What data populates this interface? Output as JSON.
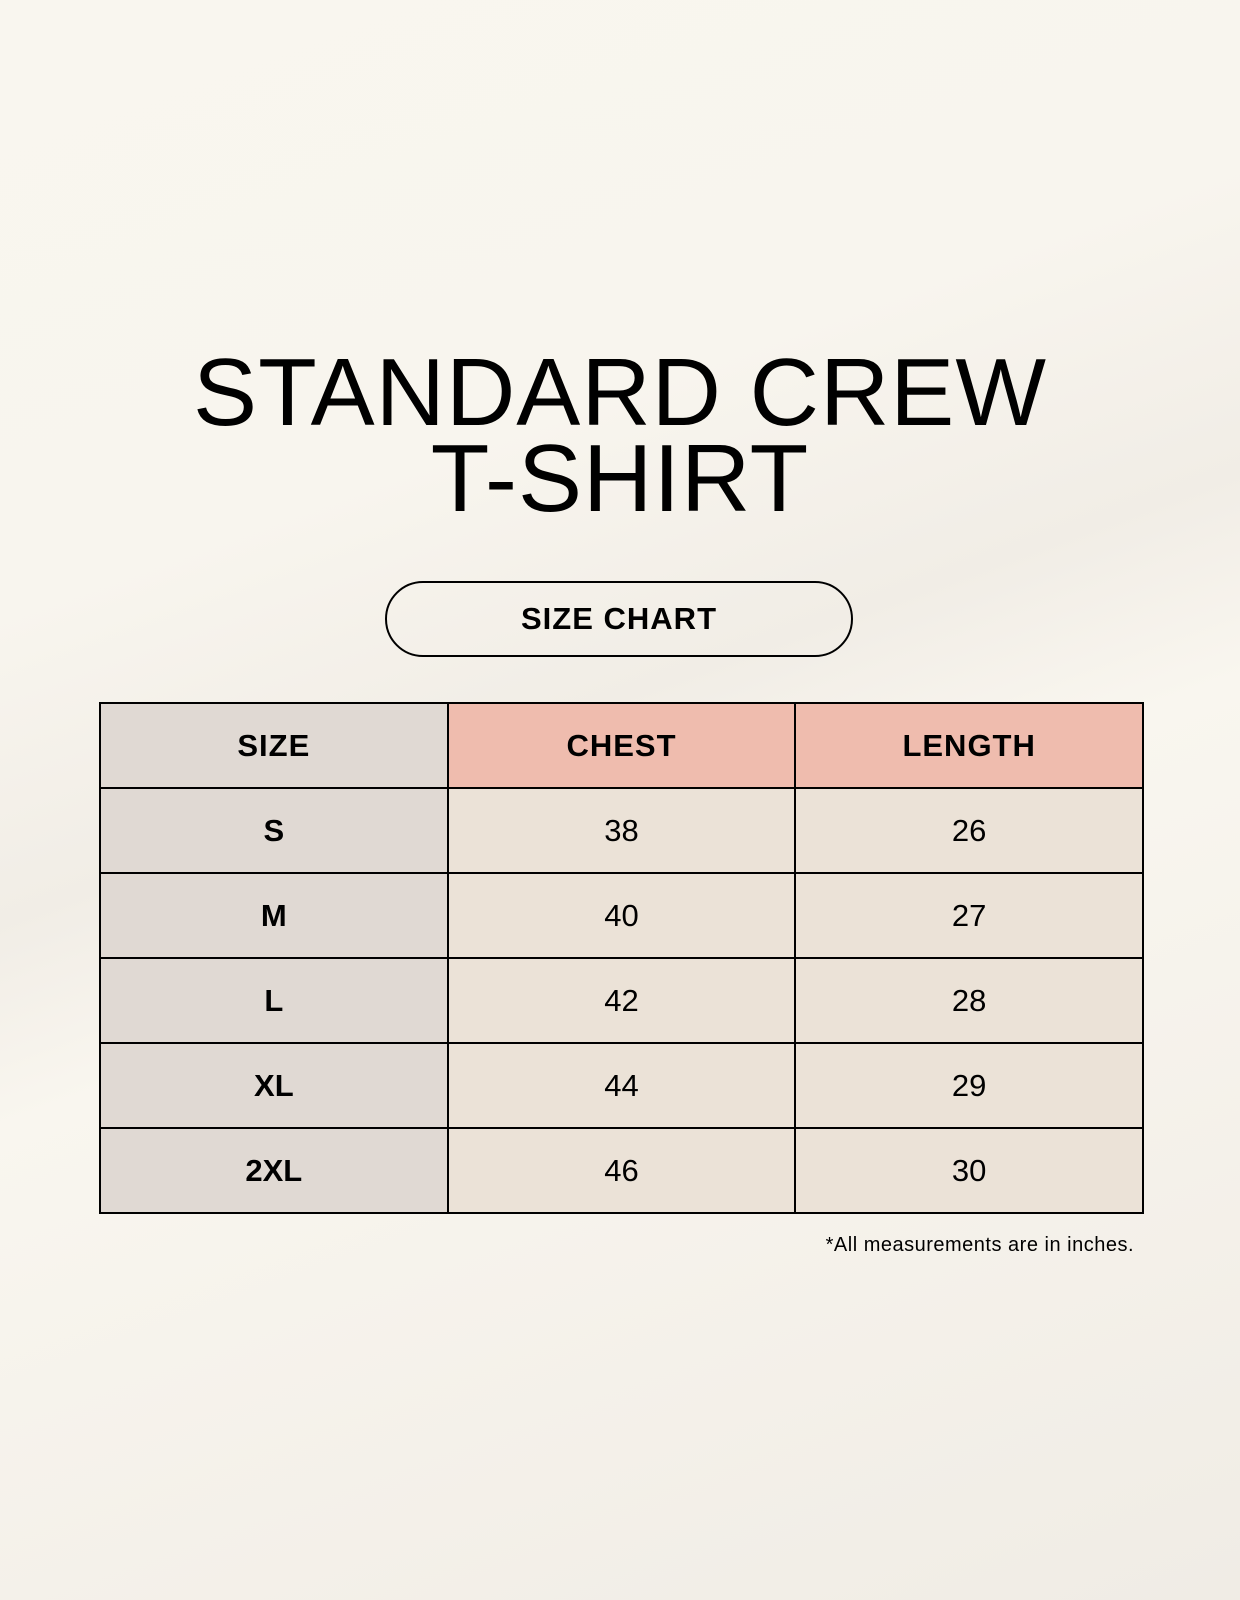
{
  "title": {
    "line1": "STANDARD CREW",
    "line2": "T-SHIRT"
  },
  "badge": "SIZE CHART",
  "table": {
    "headers": [
      "SIZE",
      "CHEST",
      "LENGTH"
    ],
    "rows": [
      [
        "S",
        "38",
        "26"
      ],
      [
        "M",
        "40",
        "27"
      ],
      [
        "L",
        "42",
        "28"
      ],
      [
        "XL",
        "44",
        "29"
      ],
      [
        "2XL",
        "46",
        "30"
      ]
    ]
  },
  "footnote": "*All measurements are in inches.",
  "colors": {
    "size_column": "#e0d9d3",
    "header_accent": "#efbcae",
    "value_cells": "#ebe2d7"
  }
}
